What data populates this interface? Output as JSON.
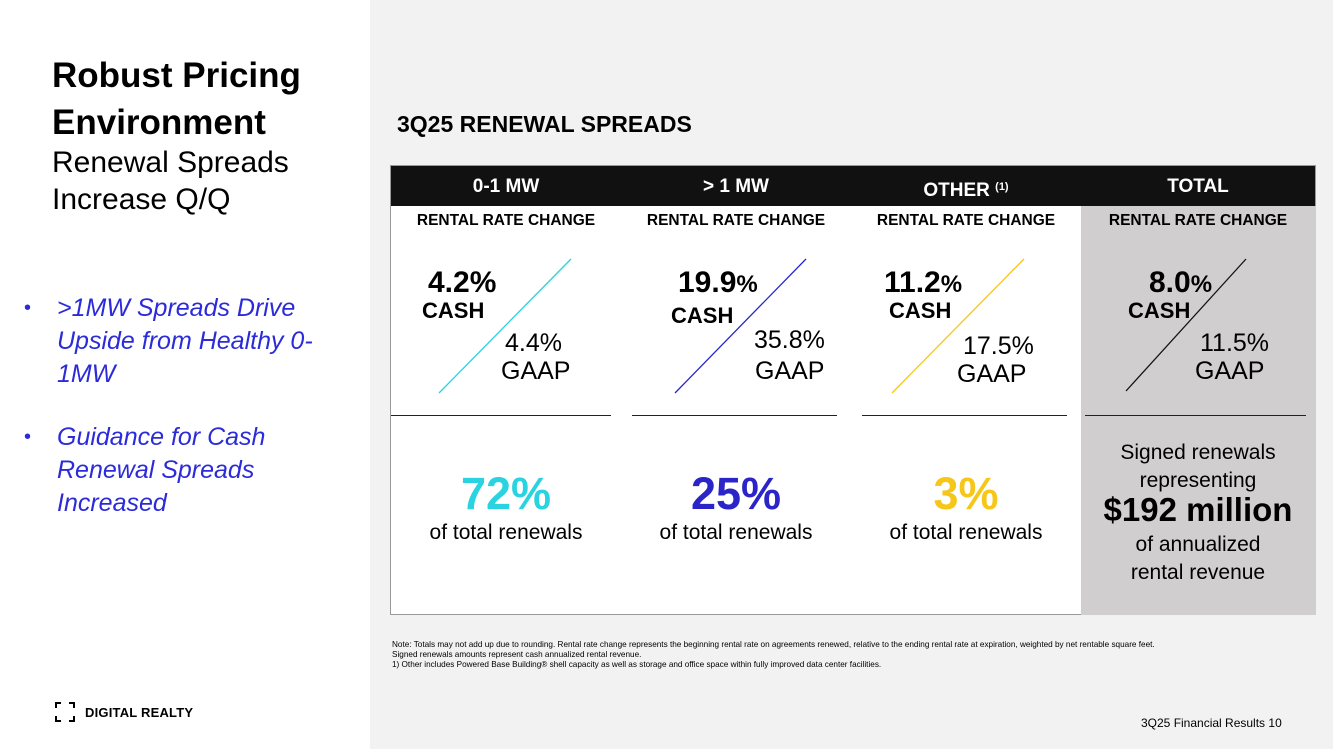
{
  "sidebar": {
    "title_bold": "Robust Pricing Environment",
    "title_sub": "Renewal Spreads Increase Q/Q",
    "bullets": [
      ">1MW Spreads Drive Upside from Healthy 0-1MW",
      "Guidance for Cash Renewal Spreads Increased"
    ],
    "logo_text": "DIGITAL REALTY"
  },
  "section_title": "3Q25 RENEWAL SPREADS",
  "columns": [
    {
      "header": "0-1 MW",
      "sub": "RENTAL RATE CHANGE",
      "cash": "4.2%",
      "cash_label": "CASH",
      "gaap": "4.4%",
      "gaap_label": "GAAP",
      "share": "72%",
      "share_note": "of total renewals",
      "color": "#29d3e0"
    },
    {
      "header": "> 1 MW",
      "sub": "RENTAL RATE CHANGE",
      "cash": "19.9",
      "cash_suffix": "%",
      "cash_label": "CASH",
      "gaap": "35.8%",
      "gaap_label": "GAAP",
      "share": "25%",
      "share_note": "of total renewals",
      "color": "#2b25c9"
    },
    {
      "header": "OTHER",
      "header_sup": "(1)",
      "sub": "RENTAL RATE CHANGE",
      "cash": "11.2",
      "cash_suffix": "%",
      "cash_label": "CASH",
      "gaap": "17.5%",
      "gaap_label": "GAAP",
      "share": "3%",
      "share_note": "of total renewals",
      "color": "#f6c618"
    },
    {
      "header": "TOTAL",
      "sub": "RENTAL RATE CHANGE",
      "cash": "8.0",
      "cash_suffix": "%",
      "cash_label": "CASH",
      "gaap": "11.5%",
      "gaap_label": "GAAP",
      "color": "#111111",
      "text_1": "Signed renewals",
      "text_2": "representing",
      "amount": "$192 million",
      "text_3": "of annualized",
      "text_4": "rental revenue"
    }
  ],
  "footnote": {
    "line1": "Note:  Totals may not add up due to rounding. Rental rate change represents the beginning rental rate on agreements renewed, relative to the ending rental rate at expiration, weighted by net rentable square feet.",
    "line2": "Signed renewals amounts represent cash annualized rental revenue.",
    "line3": "1)      Other includes Powered Base Building® shell capacity as well as storage and office space within fully improved data center facilities."
  },
  "page_label": "3Q25 Financial Results 10"
}
